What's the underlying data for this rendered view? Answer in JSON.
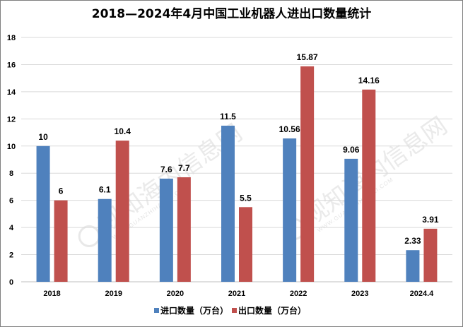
{
  "chart_data": {
    "type": "bar",
    "title": "2018—2024年4月中国工业机器人进出口数量统计",
    "categories": [
      "2018",
      "2019",
      "2020",
      "2021",
      "2022",
      "2023",
      "2024.4"
    ],
    "series": [
      {
        "name": "进口数量（万台）",
        "color": "#4f81bd",
        "values": [
          10,
          6.1,
          7.6,
          11.5,
          10.56,
          9.06,
          2.33
        ]
      },
      {
        "name": "出口数量（万台）",
        "color": "#c0504d",
        "values": [
          6,
          10.4,
          7.7,
          5.5,
          15.87,
          14.16,
          3.91
        ]
      }
    ],
    "ylim": [
      0,
      18
    ],
    "yticks": [
      0,
      2,
      4,
      6,
      8,
      10,
      12,
      14,
      16,
      18
    ],
    "grid": true,
    "legend_position": "bottom"
  },
  "watermark": {
    "text": "观知海内信息网",
    "sub": "WWW.GUANZHIHAINEI.COM"
  }
}
